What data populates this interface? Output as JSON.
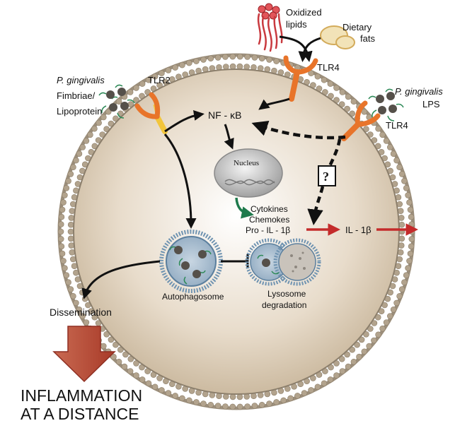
{
  "labels": {
    "oxidized_lipids_1": "Oxidized",
    "oxidized_lipids_2": "lipids",
    "dietary_fats_1": "Dietary",
    "dietary_fats_2": "fats",
    "tlr4_top": "TLR4",
    "pg_left_name": "P. gingivalis",
    "pg_left_line2": "Fimbriae/",
    "pg_left_line3": "Lipoprotein",
    "tlr2": "TLR2",
    "pg_right_name": "P. gingivalis",
    "pg_right_line2": "LPS",
    "tlr4_right": "TLR4",
    "nfkb": "NF - κB",
    "nucleus": "Nucleus",
    "question": "?",
    "cytokines": "Cytokines",
    "chemokines": "Chemokes",
    "pro_il1b": "Pro - IL - 1β",
    "il1b": "IL - 1β",
    "autophagosome": "Autophagosome",
    "lysosome_1": "Lysosome",
    "lysosome_2": "degradation",
    "dissemination": "Dissemination",
    "inflammation_1": "INFLAMMATION",
    "inflammation_2": "AT A DISTANCE"
  },
  "colors": {
    "cell_fill": "#d6c7b0",
    "membrane": "#9c8f7c",
    "receptor_orange": "#e8742a",
    "receptor_yellow": "#f2c53c",
    "lipid_red": "#c93a3f",
    "fat_fill": "#f2e3b8",
    "bacterium": "#55504a",
    "pilus": "#2e8a58",
    "vesicle_blue": "#6f93b1",
    "green_arrow": "#1e7a4c",
    "red_arrow": "#c42b2b",
    "big_arrow": "#b44a3a",
    "nucleus_fill": "#b8b8b8"
  }
}
